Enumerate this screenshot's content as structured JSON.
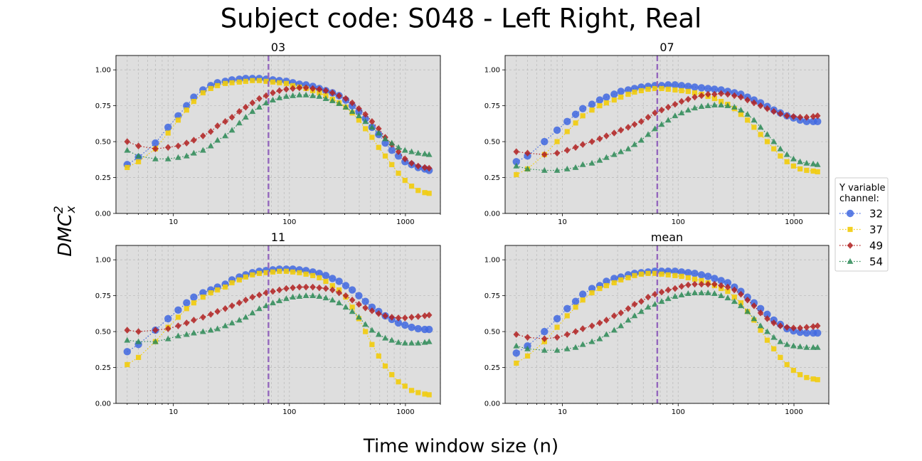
{
  "figure": {
    "title": "Subject code: S048 - Left Right, Real",
    "xlabel": "Time window size (n)",
    "ylabel_base": "DMC",
    "ylabel_sup": "2",
    "ylabel_sub": "x"
  },
  "legend": {
    "title_line1": "Y variable",
    "title_line2": "channel:",
    "placement": "right",
    "entries": [
      {
        "label": "32",
        "color": "#4169e1",
        "marker": "circle"
      },
      {
        "label": "37",
        "color": "#f2cc0c",
        "marker": "square"
      },
      {
        "label": "49",
        "color": "#b22222",
        "marker": "diamond"
      },
      {
        "label": "54",
        "color": "#2e8b57",
        "marker": "triangle"
      }
    ]
  },
  "style": {
    "plot_background": "#dedede",
    "grid_color": "#bdbdbd",
    "vline_color": "#9467bd"
  },
  "chart_data": [
    {
      "type": "scatter",
      "title": "03",
      "xscale": "log",
      "xlim": [
        3.2,
        2000
      ],
      "ylim": [
        0,
        1.1
      ],
      "grid": true,
      "vline_x": 66,
      "x_ticks": [
        "10",
        "100",
        "1000"
      ],
      "y_ticks": [
        "0.00",
        "0.25",
        "0.50",
        "0.75",
        "1.00"
      ],
      "x": [
        4,
        5,
        7,
        9,
        11,
        13,
        15,
        18,
        21,
        24,
        28,
        32,
        37,
        42,
        48,
        55,
        63,
        72,
        82,
        94,
        107,
        122,
        139,
        159,
        181,
        206,
        235,
        268,
        306,
        348,
        397,
        452,
        515,
        588,
        670,
        763,
        870,
        991,
        1130,
        1287,
        1467,
        1600
      ],
      "series": [
        {
          "name": "32",
          "values": [
            0.34,
            0.39,
            0.49,
            0.6,
            0.68,
            0.75,
            0.81,
            0.86,
            0.89,
            0.91,
            0.92,
            0.93,
            0.935,
            0.94,
            0.94,
            0.94,
            0.935,
            0.93,
            0.925,
            0.92,
            0.91,
            0.9,
            0.895,
            0.885,
            0.87,
            0.855,
            0.84,
            0.82,
            0.79,
            0.75,
            0.71,
            0.66,
            0.6,
            0.55,
            0.49,
            0.44,
            0.4,
            0.36,
            0.34,
            0.32,
            0.31,
            0.3
          ]
        },
        {
          "name": "37",
          "values": [
            0.32,
            0.36,
            0.45,
            0.56,
            0.65,
            0.72,
            0.78,
            0.84,
            0.87,
            0.89,
            0.905,
            0.91,
            0.915,
            0.92,
            0.925,
            0.925,
            0.92,
            0.915,
            0.91,
            0.905,
            0.89,
            0.88,
            0.87,
            0.855,
            0.84,
            0.82,
            0.795,
            0.77,
            0.74,
            0.7,
            0.65,
            0.59,
            0.53,
            0.46,
            0.4,
            0.34,
            0.28,
            0.23,
            0.19,
            0.16,
            0.145,
            0.14
          ]
        },
        {
          "name": "49",
          "values": [
            0.5,
            0.47,
            0.45,
            0.46,
            0.47,
            0.49,
            0.51,
            0.54,
            0.57,
            0.61,
            0.64,
            0.67,
            0.71,
            0.74,
            0.77,
            0.8,
            0.82,
            0.84,
            0.855,
            0.865,
            0.87,
            0.875,
            0.875,
            0.87,
            0.865,
            0.855,
            0.84,
            0.82,
            0.8,
            0.77,
            0.73,
            0.69,
            0.64,
            0.59,
            0.53,
            0.48,
            0.43,
            0.38,
            0.35,
            0.33,
            0.32,
            0.315
          ]
        },
        {
          "name": "54",
          "values": [
            0.44,
            0.4,
            0.38,
            0.38,
            0.39,
            0.4,
            0.42,
            0.44,
            0.47,
            0.51,
            0.54,
            0.58,
            0.63,
            0.67,
            0.71,
            0.74,
            0.77,
            0.79,
            0.805,
            0.815,
            0.82,
            0.825,
            0.825,
            0.82,
            0.815,
            0.8,
            0.785,
            0.765,
            0.74,
            0.71,
            0.68,
            0.64,
            0.6,
            0.56,
            0.52,
            0.49,
            0.46,
            0.44,
            0.43,
            0.42,
            0.415,
            0.41
          ]
        }
      ]
    },
    {
      "type": "scatter",
      "title": "07",
      "xscale": "log",
      "xlim": [
        3.2,
        2000
      ],
      "ylim": [
        0,
        1.1
      ],
      "grid": true,
      "vline_x": 66,
      "x_ticks": [
        "10",
        "100",
        "1000"
      ],
      "y_ticks": [
        "0.00",
        "0.25",
        "0.50",
        "0.75",
        "1.00"
      ],
      "x": [
        4,
        5,
        7,
        9,
        11,
        13,
        15,
        18,
        21,
        24,
        28,
        32,
        37,
        42,
        48,
        55,
        63,
        72,
        82,
        94,
        107,
        122,
        139,
        159,
        181,
        206,
        235,
        268,
        306,
        348,
        397,
        452,
        515,
        588,
        670,
        763,
        870,
        991,
        1130,
        1287,
        1467,
        1600
      ],
      "series": [
        {
          "name": "32",
          "values": [
            0.36,
            0.4,
            0.5,
            0.58,
            0.64,
            0.69,
            0.73,
            0.76,
            0.79,
            0.81,
            0.83,
            0.85,
            0.86,
            0.87,
            0.88,
            0.885,
            0.89,
            0.89,
            0.895,
            0.895,
            0.89,
            0.885,
            0.88,
            0.875,
            0.87,
            0.865,
            0.86,
            0.85,
            0.84,
            0.83,
            0.81,
            0.79,
            0.77,
            0.745,
            0.72,
            0.7,
            0.68,
            0.665,
            0.65,
            0.64,
            0.64,
            0.64
          ]
        },
        {
          "name": "37",
          "values": [
            0.27,
            0.31,
            0.41,
            0.5,
            0.57,
            0.63,
            0.68,
            0.72,
            0.75,
            0.77,
            0.79,
            0.81,
            0.83,
            0.845,
            0.855,
            0.865,
            0.87,
            0.87,
            0.865,
            0.86,
            0.855,
            0.85,
            0.84,
            0.83,
            0.815,
            0.8,
            0.78,
            0.76,
            0.73,
            0.69,
            0.65,
            0.6,
            0.55,
            0.5,
            0.45,
            0.4,
            0.36,
            0.33,
            0.31,
            0.3,
            0.295,
            0.29
          ]
        },
        {
          "name": "49",
          "values": [
            0.43,
            0.42,
            0.41,
            0.42,
            0.44,
            0.46,
            0.48,
            0.5,
            0.52,
            0.54,
            0.56,
            0.58,
            0.6,
            0.62,
            0.64,
            0.67,
            0.7,
            0.72,
            0.74,
            0.76,
            0.78,
            0.795,
            0.81,
            0.82,
            0.83,
            0.83,
            0.835,
            0.83,
            0.82,
            0.81,
            0.79,
            0.77,
            0.75,
            0.73,
            0.71,
            0.695,
            0.68,
            0.675,
            0.67,
            0.67,
            0.675,
            0.68
          ]
        },
        {
          "name": "54",
          "values": [
            0.33,
            0.31,
            0.3,
            0.3,
            0.31,
            0.32,
            0.34,
            0.35,
            0.37,
            0.39,
            0.41,
            0.43,
            0.45,
            0.48,
            0.51,
            0.55,
            0.59,
            0.62,
            0.65,
            0.68,
            0.7,
            0.72,
            0.735,
            0.745,
            0.75,
            0.755,
            0.755,
            0.75,
            0.74,
            0.72,
            0.69,
            0.65,
            0.6,
            0.55,
            0.5,
            0.45,
            0.41,
            0.38,
            0.36,
            0.35,
            0.345,
            0.34
          ]
        }
      ]
    },
    {
      "type": "scatter",
      "title": "11",
      "xscale": "log",
      "xlim": [
        3.2,
        2000
      ],
      "ylim": [
        0,
        1.1
      ],
      "grid": true,
      "vline_x": 66,
      "x_ticks": [
        "10",
        "100",
        "1000"
      ],
      "y_ticks": [
        "0.00",
        "0.25",
        "0.50",
        "0.75",
        "1.00"
      ],
      "x": [
        4,
        5,
        7,
        9,
        11,
        13,
        15,
        18,
        21,
        24,
        28,
        32,
        37,
        42,
        48,
        55,
        63,
        72,
        82,
        94,
        107,
        122,
        139,
        159,
        181,
        206,
        235,
        268,
        306,
        348,
        397,
        452,
        515,
        588,
        670,
        763,
        870,
        991,
        1130,
        1287,
        1467,
        1600
      ],
      "series": [
        {
          "name": "32",
          "values": [
            0.36,
            0.41,
            0.51,
            0.59,
            0.65,
            0.7,
            0.74,
            0.77,
            0.79,
            0.81,
            0.83,
            0.86,
            0.88,
            0.895,
            0.91,
            0.92,
            0.925,
            0.93,
            0.935,
            0.935,
            0.935,
            0.93,
            0.925,
            0.915,
            0.905,
            0.89,
            0.87,
            0.85,
            0.82,
            0.79,
            0.75,
            0.71,
            0.67,
            0.64,
            0.61,
            0.585,
            0.56,
            0.545,
            0.53,
            0.52,
            0.515,
            0.515
          ]
        },
        {
          "name": "37",
          "values": [
            0.27,
            0.32,
            0.43,
            0.53,
            0.6,
            0.66,
            0.7,
            0.74,
            0.77,
            0.79,
            0.81,
            0.84,
            0.86,
            0.88,
            0.895,
            0.905,
            0.91,
            0.915,
            0.92,
            0.92,
            0.915,
            0.91,
            0.9,
            0.89,
            0.875,
            0.85,
            0.82,
            0.79,
            0.74,
            0.67,
            0.59,
            0.5,
            0.41,
            0.33,
            0.26,
            0.2,
            0.15,
            0.12,
            0.09,
            0.075,
            0.065,
            0.06
          ]
        },
        {
          "name": "49",
          "values": [
            0.51,
            0.5,
            0.51,
            0.52,
            0.54,
            0.56,
            0.58,
            0.6,
            0.62,
            0.64,
            0.66,
            0.68,
            0.7,
            0.72,
            0.74,
            0.755,
            0.77,
            0.78,
            0.79,
            0.8,
            0.805,
            0.81,
            0.81,
            0.81,
            0.805,
            0.8,
            0.79,
            0.77,
            0.75,
            0.72,
            0.69,
            0.665,
            0.645,
            0.625,
            0.61,
            0.6,
            0.595,
            0.595,
            0.6,
            0.605,
            0.61,
            0.615
          ]
        },
        {
          "name": "54",
          "values": [
            0.44,
            0.43,
            0.43,
            0.45,
            0.47,
            0.48,
            0.49,
            0.5,
            0.51,
            0.52,
            0.54,
            0.56,
            0.58,
            0.6,
            0.63,
            0.66,
            0.68,
            0.7,
            0.715,
            0.73,
            0.74,
            0.745,
            0.75,
            0.75,
            0.745,
            0.735,
            0.72,
            0.7,
            0.67,
            0.64,
            0.6,
            0.55,
            0.51,
            0.48,
            0.455,
            0.44,
            0.425,
            0.42,
            0.42,
            0.42,
            0.425,
            0.43
          ]
        }
      ]
    },
    {
      "type": "scatter",
      "title": "mean",
      "xscale": "log",
      "xlim": [
        3.2,
        2000
      ],
      "ylim": [
        0,
        1.1
      ],
      "grid": true,
      "vline_x": 66,
      "x_ticks": [
        "10",
        "100",
        "1000"
      ],
      "y_ticks": [
        "0.00",
        "0.25",
        "0.50",
        "0.75",
        "1.00"
      ],
      "x": [
        4,
        5,
        7,
        9,
        11,
        13,
        15,
        18,
        21,
        24,
        28,
        32,
        37,
        42,
        48,
        55,
        63,
        72,
        82,
        94,
        107,
        122,
        139,
        159,
        181,
        206,
        235,
        268,
        306,
        348,
        397,
        452,
        515,
        588,
        670,
        763,
        870,
        991,
        1130,
        1287,
        1467,
        1600
      ],
      "series": [
        {
          "name": "32",
          "values": [
            0.35,
            0.4,
            0.5,
            0.59,
            0.66,
            0.71,
            0.76,
            0.8,
            0.82,
            0.85,
            0.87,
            0.88,
            0.895,
            0.905,
            0.91,
            0.915,
            0.92,
            0.92,
            0.92,
            0.92,
            0.915,
            0.91,
            0.905,
            0.895,
            0.885,
            0.87,
            0.855,
            0.84,
            0.81,
            0.78,
            0.74,
            0.7,
            0.66,
            0.62,
            0.58,
            0.55,
            0.52,
            0.505,
            0.495,
            0.49,
            0.49,
            0.49
          ]
        },
        {
          "name": "37",
          "values": [
            0.28,
            0.33,
            0.43,
            0.53,
            0.61,
            0.67,
            0.72,
            0.77,
            0.8,
            0.82,
            0.84,
            0.86,
            0.875,
            0.89,
            0.9,
            0.905,
            0.905,
            0.9,
            0.895,
            0.89,
            0.885,
            0.875,
            0.865,
            0.855,
            0.84,
            0.82,
            0.8,
            0.78,
            0.74,
            0.7,
            0.64,
            0.58,
            0.51,
            0.44,
            0.38,
            0.32,
            0.27,
            0.23,
            0.2,
            0.18,
            0.17,
            0.165
          ]
        },
        {
          "name": "49",
          "values": [
            0.48,
            0.46,
            0.45,
            0.46,
            0.48,
            0.5,
            0.52,
            0.54,
            0.56,
            0.58,
            0.61,
            0.63,
            0.66,
            0.69,
            0.71,
            0.74,
            0.76,
            0.775,
            0.79,
            0.8,
            0.815,
            0.825,
            0.83,
            0.83,
            0.83,
            0.83,
            0.82,
            0.81,
            0.79,
            0.76,
            0.72,
            0.68,
            0.63,
            0.59,
            0.56,
            0.54,
            0.53,
            0.525,
            0.525,
            0.53,
            0.535,
            0.54
          ]
        },
        {
          "name": "54",
          "values": [
            0.4,
            0.38,
            0.37,
            0.37,
            0.38,
            0.39,
            0.41,
            0.43,
            0.45,
            0.48,
            0.51,
            0.54,
            0.58,
            0.61,
            0.64,
            0.67,
            0.69,
            0.71,
            0.73,
            0.745,
            0.755,
            0.765,
            0.77,
            0.77,
            0.77,
            0.765,
            0.75,
            0.735,
            0.71,
            0.68,
            0.64,
            0.59,
            0.54,
            0.5,
            0.46,
            0.43,
            0.41,
            0.4,
            0.395,
            0.39,
            0.39,
            0.39
          ]
        }
      ]
    }
  ]
}
